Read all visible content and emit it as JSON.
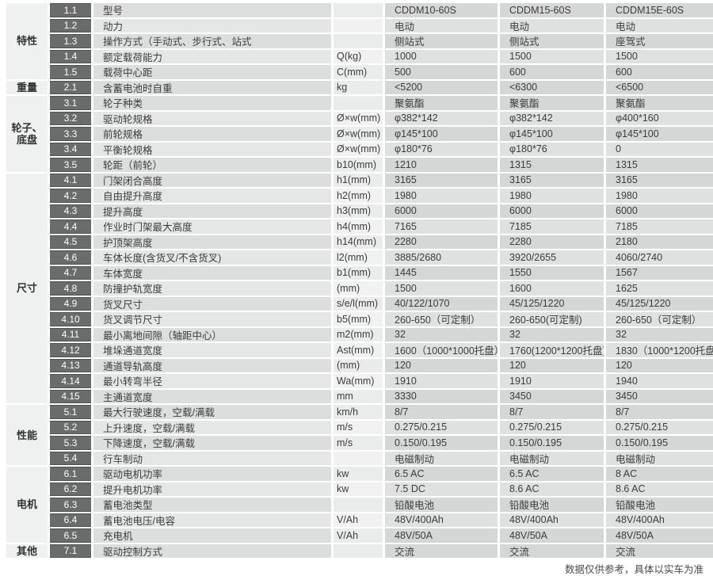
{
  "footer": {
    "note": "数据仅供参考，具体以实车为准"
  },
  "table": {
    "models": [
      "CDDM10-60S",
      "CDDM15-60S",
      "CDDM15E-60S"
    ],
    "groups": [
      {
        "category": "特性",
        "rows": [
          {
            "code": "1.1",
            "name": "型号",
            "unit": "",
            "values": [
              "CDDM10-60S",
              "CDDM15-60S",
              "CDDM15E-60S"
            ]
          },
          {
            "code": "1.2",
            "name": "动力",
            "unit": "",
            "values": [
              "电动",
              "电动",
              "电动"
            ]
          },
          {
            "code": "1.3",
            "name": "操作方式（手动式、步行式、站式",
            "unit": "",
            "values": [
              "侧站式",
              "侧站式",
              "座驾式"
            ]
          },
          {
            "code": "1.4",
            "name": "额定载荷能力",
            "unit": "Q(kg)",
            "values": [
              "1000",
              "1500",
              "1500"
            ]
          },
          {
            "code": "1.5",
            "name": "载荷中心距",
            "unit": "C(mm)",
            "values": [
              "500",
              "600",
              "600"
            ]
          }
        ]
      },
      {
        "category": "重量",
        "rows": [
          {
            "code": "2.1",
            "name": "含蓄电池时自重",
            "unit": "kg",
            "values": [
              "<5200",
              "<6300",
              "<6500"
            ]
          }
        ]
      },
      {
        "category": "轮子、底盘",
        "rows": [
          {
            "code": "3.1",
            "name": "轮子种类",
            "unit": "",
            "values": [
              "聚氨酯",
              "聚氨酯",
              "聚氨酯"
            ]
          },
          {
            "code": "3.2",
            "name": "驱动轮规格",
            "unit": "Ø×w(mm)",
            "values": [
              "φ382*142",
              "φ382*142",
              "φ400*160"
            ]
          },
          {
            "code": "3.3",
            "name": "前轮规格",
            "unit": "Ø×w(mm)",
            "values": [
              "φ145*100",
              "φ145*100",
              "φ145*100"
            ]
          },
          {
            "code": "3.4",
            "name": "平衡轮规格",
            "unit": "Ø×w(mm)",
            "values": [
              "φ180*76",
              "φ180*76",
              "0"
            ]
          },
          {
            "code": "3.5",
            "name": "轮距（前轮）",
            "unit": "b10(mm)",
            "values": [
              "1210",
              "1315",
              "1315"
            ]
          }
        ]
      },
      {
        "category": "尺寸",
        "rows": [
          {
            "code": "4.1",
            "name": "门架闭合高度",
            "unit": "h1(mm)",
            "values": [
              "3165",
              "3165",
              "3165"
            ]
          },
          {
            "code": "4.2",
            "name": "自由提升高度",
            "unit": "h2(mm)",
            "values": [
              "1980",
              "1980",
              "1980"
            ]
          },
          {
            "code": "4.3",
            "name": "提升高度",
            "unit": "h3(mm)",
            "values": [
              "6000",
              "6000",
              "6000"
            ]
          },
          {
            "code": "4.4",
            "name": "作业时门架最大高度",
            "unit": "h4(mm)",
            "values": [
              "7165",
              "7185",
              "7185"
            ]
          },
          {
            "code": "4.5",
            "name": "护顶架高度",
            "unit": "h14(mm)",
            "values": [
              "2280",
              "2280",
              "2180"
            ]
          },
          {
            "code": "4.6",
            "name": "车体长度(含货叉/不含货叉)",
            "unit": "l2(mm)",
            "values": [
              "3885/2680",
              "3920/2655",
              "4060/2740"
            ]
          },
          {
            "code": "4.7",
            "name": "车体宽度",
            "unit": "b1(mm)",
            "values": [
              "1445",
              "1550",
              "1567"
            ]
          },
          {
            "code": "4.8",
            "name": "防撞护轨宽度",
            "unit": "(mm)",
            "values": [
              "1500",
              "1600",
              "1625"
            ]
          },
          {
            "code": "4.9",
            "name": "货叉尺寸",
            "unit": "s/e/l(mm)",
            "values": [
              "40/122/1070",
              "45/125/1220",
              "45/125/1220"
            ]
          },
          {
            "code": "4.10",
            "name": "货叉调节尺寸",
            "unit": "b5(mm)",
            "values": [
              "260-650（可定制）",
              "260-650(可定制)",
              "260-650（可定制）"
            ]
          },
          {
            "code": "4.11",
            "name": "最小离地间隙（轴距中心）",
            "unit": "m2(mm)",
            "values": [
              "32",
              "32",
              "32"
            ]
          },
          {
            "code": "4.12",
            "name": "堆垛通道宽度",
            "unit": "Ast(mm)",
            "values": [
              "1600（1000*1000托盘）",
              "1760(1200*1200托盘)",
              "1830（1000*1200托盘）"
            ]
          },
          {
            "code": "4.13",
            "name": "通道导轨高度",
            "unit": "(mm)",
            "values": [
              "120",
              "120",
              "120"
            ]
          },
          {
            "code": "4.14",
            "name": "最小转弯半径",
            "unit": "Wa(mm)",
            "values": [
              "1910",
              "1910",
              "1940"
            ]
          },
          {
            "code": "4.15",
            "name": "主通道宽度",
            "unit": "mm",
            "values": [
              "3330",
              "3450",
              "3450"
            ]
          }
        ]
      },
      {
        "category": "性能",
        "rows": [
          {
            "code": "5.1",
            "name": "最大行驶速度，空载/满载",
            "unit": "km/h",
            "values": [
              "8/7",
              "8/7",
              "8/7"
            ]
          },
          {
            "code": "5.2",
            "name": "上升速度，空载/满载",
            "unit": "m/s",
            "values": [
              "0.275/0.215",
              "0.275/0.215",
              "0.275/0.215"
            ]
          },
          {
            "code": "5.3",
            "name": "下降速度，空载/满载",
            "unit": "m/s",
            "values": [
              "0.150/0.195",
              "0.150/0.195",
              "0.150/0.195"
            ]
          },
          {
            "code": "5.4",
            "name": "行车制动",
            "unit": "",
            "values": [
              "电磁制动",
              "电磁制动",
              "电磁制动"
            ]
          }
        ]
      },
      {
        "category": "电机",
        "rows": [
          {
            "code": "6.1",
            "name": "驱动电机功率",
            "unit": "kw",
            "values": [
              "6.5 AC",
              "6.5 AC",
              "8 AC"
            ]
          },
          {
            "code": "6.2",
            "name": "提升电机功率",
            "unit": "kw",
            "values": [
              "7.5 DC",
              "8.6 AC",
              "8.6 AC"
            ]
          },
          {
            "code": "6.3",
            "name": "蓄电池类型",
            "unit": "",
            "values": [
              "铅酸电池",
              "铅酸电池",
              "铅酸电池"
            ]
          },
          {
            "code": "6.4",
            "name": "蓄电池电压/电容",
            "unit": "V/Ah",
            "values": [
              "48V/400Ah",
              "48V/400Ah",
              "48V/400Ah"
            ]
          },
          {
            "code": "6.5",
            "name": "充电机",
            "unit": "V/Ah",
            "values": [
              "48V/50A",
              "48V/50A",
              "48V/50A"
            ]
          }
        ]
      },
      {
        "category": "其他",
        "rows": [
          {
            "code": "7.1",
            "name": "驱动控制方式",
            "unit": "",
            "values": [
              "交流",
              "交流",
              "交流"
            ]
          }
        ]
      }
    ]
  },
  "colors": {
    "code_badge_bg": "#6a6b6b",
    "category_bg": "#eff0f0",
    "value_cell_bg": "#d5d6d6",
    "value_cell_alt_bg": "#dfe0e0"
  }
}
